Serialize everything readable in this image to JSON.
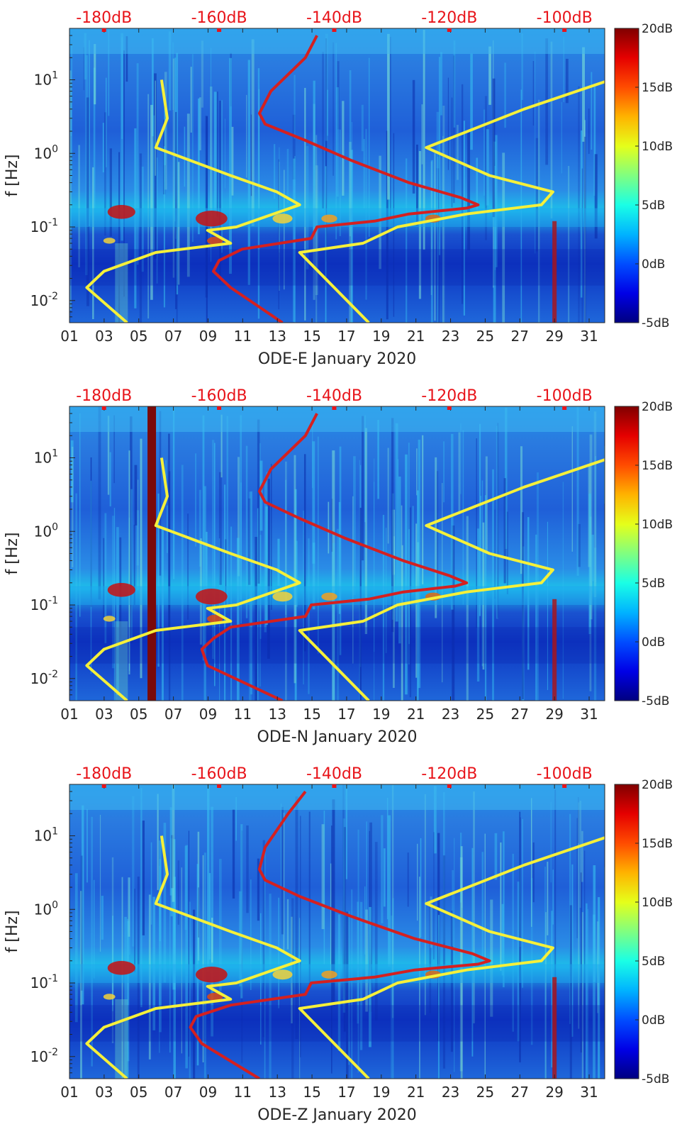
{
  "chart_data": [
    {
      "type": "heatmap",
      "title": "",
      "xlabel": "ODE-E January 2020",
      "ylabel": "f [Hz]",
      "x_ticks": [
        "01",
        "03",
        "05",
        "07",
        "09",
        "11",
        "13",
        "15",
        "17",
        "19",
        "21",
        "23",
        "25",
        "27",
        "29",
        "31"
      ],
      "xlim": [
        1,
        31.9
      ],
      "y_ticks": [
        "10-2",
        "10-1",
        "100",
        "101"
      ],
      "ylim": [
        0.005,
        50
      ],
      "top_axis_ticks": [
        "-180dB",
        "-160dB",
        "-140dB",
        "-120dB",
        "-100dB"
      ],
      "top_axis_range_db": [
        -186,
        -93
      ],
      "colorbar": {
        "labels": [
          "20dB",
          "15dB",
          "10dB",
          "5dB",
          "0dB",
          "-5dB"
        ],
        "range_db": [
          -5,
          20
        ]
      },
      "noise_model_curves": {
        "yellow_low_high": {
          "low_model": [
            [
              0.005,
              -176
            ],
            [
              0.015,
              -183
            ],
            [
              0.025,
              -180
            ],
            [
              0.045,
              -171
            ],
            [
              0.06,
              -158
            ],
            [
              0.09,
              -162
            ],
            [
              0.1,
              -157
            ],
            [
              0.2,
              -146
            ],
            [
              0.3,
              -150
            ],
            [
              0.5,
              -158
            ],
            [
              1.2,
              -171
            ],
            [
              3,
              -169
            ],
            [
              10,
              -170
            ]
          ],
          "high_model": [
            [
              0.005,
              -134
            ],
            [
              0.045,
              -146
            ],
            [
              0.06,
              -135
            ],
            [
              0.1,
              -129
            ],
            [
              0.15,
              -117
            ],
            [
              0.2,
              -104
            ],
            [
              0.3,
              -102
            ],
            [
              0.5,
              -113
            ],
            [
              1.2,
              -124
            ],
            [
              4,
              -107
            ],
            [
              10,
              -92
            ]
          ]
        },
        "red_station_median": [
          [
            0.005,
            -149
          ],
          [
            0.015,
            -158
          ],
          [
            0.025,
            -161
          ],
          [
            0.035,
            -160
          ],
          [
            0.05,
            -156
          ],
          [
            0.07,
            -144
          ],
          [
            0.1,
            -143
          ],
          [
            0.12,
            -133
          ],
          [
            0.15,
            -127
          ],
          [
            0.18,
            -117
          ],
          [
            0.2,
            -115
          ],
          [
            0.25,
            -118
          ],
          [
            0.4,
            -127
          ],
          [
            0.8,
            -137
          ],
          [
            1.5,
            -145
          ],
          [
            2.5,
            -152
          ],
          [
            3.5,
            -153
          ],
          [
            7,
            -151
          ],
          [
            20,
            -145
          ],
          [
            40,
            -143
          ]
        ]
      },
      "annotations": "spectral-variability spectrogram with noise model overlays"
    },
    {
      "type": "heatmap",
      "title": "",
      "xlabel": "ODE-N January 2020",
      "ylabel": "f [Hz]",
      "x_ticks": [
        "01",
        "03",
        "05",
        "07",
        "09",
        "11",
        "13",
        "15",
        "17",
        "19",
        "21",
        "23",
        "25",
        "27",
        "29",
        "31"
      ],
      "xlim": [
        1,
        31.9
      ],
      "y_ticks": [
        "10-2",
        "10-1",
        "100",
        "101"
      ],
      "ylim": [
        0.005,
        50
      ],
      "top_axis_ticks": [
        "-180dB",
        "-160dB",
        "-140dB",
        "-120dB",
        "-100dB"
      ],
      "top_axis_range_db": [
        -186,
        -93
      ],
      "colorbar": {
        "labels": [
          "20dB",
          "15dB",
          "10dB",
          "5dB",
          "0dB",
          "-5dB"
        ],
        "range_db": [
          -5,
          20
        ]
      },
      "noise_model_curves": {
        "yellow_low_high": {
          "low_model": [
            [
              0.005,
              -176
            ],
            [
              0.015,
              -183
            ],
            [
              0.025,
              -180
            ],
            [
              0.045,
              -171
            ],
            [
              0.06,
              -158
            ],
            [
              0.09,
              -162
            ],
            [
              0.1,
              -157
            ],
            [
              0.2,
              -146
            ],
            [
              0.3,
              -150
            ],
            [
              0.5,
              -158
            ],
            [
              1.2,
              -171
            ],
            [
              3,
              -169
            ],
            [
              10,
              -170
            ]
          ],
          "high_model": [
            [
              0.005,
              -134
            ],
            [
              0.045,
              -146
            ],
            [
              0.06,
              -135
            ],
            [
              0.1,
              -129
            ],
            [
              0.15,
              -117
            ],
            [
              0.2,
              -104
            ],
            [
              0.3,
              -102
            ],
            [
              0.5,
              -113
            ],
            [
              1.2,
              -124
            ],
            [
              4,
              -107
            ],
            [
              10,
              -92
            ]
          ]
        },
        "red_station_median": [
          [
            0.005,
            -149
          ],
          [
            0.015,
            -162
          ],
          [
            0.025,
            -163
          ],
          [
            0.035,
            -161
          ],
          [
            0.05,
            -158
          ],
          [
            0.07,
            -145
          ],
          [
            0.1,
            -144
          ],
          [
            0.12,
            -134
          ],
          [
            0.15,
            -128
          ],
          [
            0.18,
            -119
          ],
          [
            0.2,
            -117
          ],
          [
            0.25,
            -120
          ],
          [
            0.4,
            -128
          ],
          [
            0.8,
            -138
          ],
          [
            1.5,
            -146
          ],
          [
            2.5,
            -152
          ],
          [
            3.5,
            -153
          ],
          [
            7,
            -151
          ],
          [
            20,
            -145
          ],
          [
            40,
            -143
          ]
        ]
      },
      "annotations": "dark red vertical band near day 05.8"
    },
    {
      "type": "heatmap",
      "title": "",
      "xlabel": "ODE-Z January 2020",
      "ylabel": "f [Hz]",
      "x_ticks": [
        "01",
        "03",
        "05",
        "07",
        "09",
        "11",
        "13",
        "15",
        "17",
        "19",
        "21",
        "23",
        "25",
        "27",
        "29",
        "31"
      ],
      "xlim": [
        1,
        31.9
      ],
      "y_ticks": [
        "10-2",
        "10-1",
        "100",
        "101"
      ],
      "ylim": [
        0.005,
        50
      ],
      "top_axis_ticks": [
        "-180dB",
        "-160dB",
        "-140dB",
        "-120dB",
        "-100dB"
      ],
      "top_axis_range_db": [
        -186,
        -93
      ],
      "colorbar": {
        "labels": [
          "20dB",
          "15dB",
          "10dB",
          "5dB",
          "0dB",
          "-5dB"
        ],
        "range_db": [
          -5,
          20
        ]
      },
      "noise_model_curves": {
        "yellow_low_high": {
          "low_model": [
            [
              0.005,
              -176
            ],
            [
              0.015,
              -183
            ],
            [
              0.025,
              -180
            ],
            [
              0.045,
              -171
            ],
            [
              0.06,
              -158
            ],
            [
              0.09,
              -162
            ],
            [
              0.1,
              -157
            ],
            [
              0.2,
              -146
            ],
            [
              0.3,
              -150
            ],
            [
              0.5,
              -158
            ],
            [
              1.2,
              -171
            ],
            [
              3,
              -169
            ],
            [
              10,
              -170
            ]
          ],
          "high_model": [
            [
              0.005,
              -134
            ],
            [
              0.045,
              -146
            ],
            [
              0.06,
              -135
            ],
            [
              0.1,
              -129
            ],
            [
              0.15,
              -117
            ],
            [
              0.2,
              -104
            ],
            [
              0.3,
              -102
            ],
            [
              0.5,
              -113
            ],
            [
              1.2,
              -124
            ],
            [
              4,
              -107
            ],
            [
              10,
              -92
            ]
          ]
        },
        "red_station_median": [
          [
            0.005,
            -153
          ],
          [
            0.015,
            -163
          ],
          [
            0.025,
            -165
          ],
          [
            0.035,
            -164
          ],
          [
            0.05,
            -158
          ],
          [
            0.07,
            -145
          ],
          [
            0.1,
            -144
          ],
          [
            0.12,
            -133
          ],
          [
            0.15,
            -126
          ],
          [
            0.18,
            -115
          ],
          [
            0.2,
            -113
          ],
          [
            0.25,
            -116
          ],
          [
            0.4,
            -126
          ],
          [
            0.8,
            -137
          ],
          [
            1.5,
            -146
          ],
          [
            2.5,
            -152
          ],
          [
            3.5,
            -153
          ],
          [
            7,
            -152
          ],
          [
            20,
            -148
          ],
          [
            40,
            -145
          ]
        ]
      },
      "annotations": ""
    }
  ],
  "colors": {
    "top_axis_text": "#e8141a",
    "red_curve": "#d42020",
    "yellow_curve": "#f5f03a",
    "axis_text": "#262626",
    "heat_base": "#0a2fc8"
  }
}
